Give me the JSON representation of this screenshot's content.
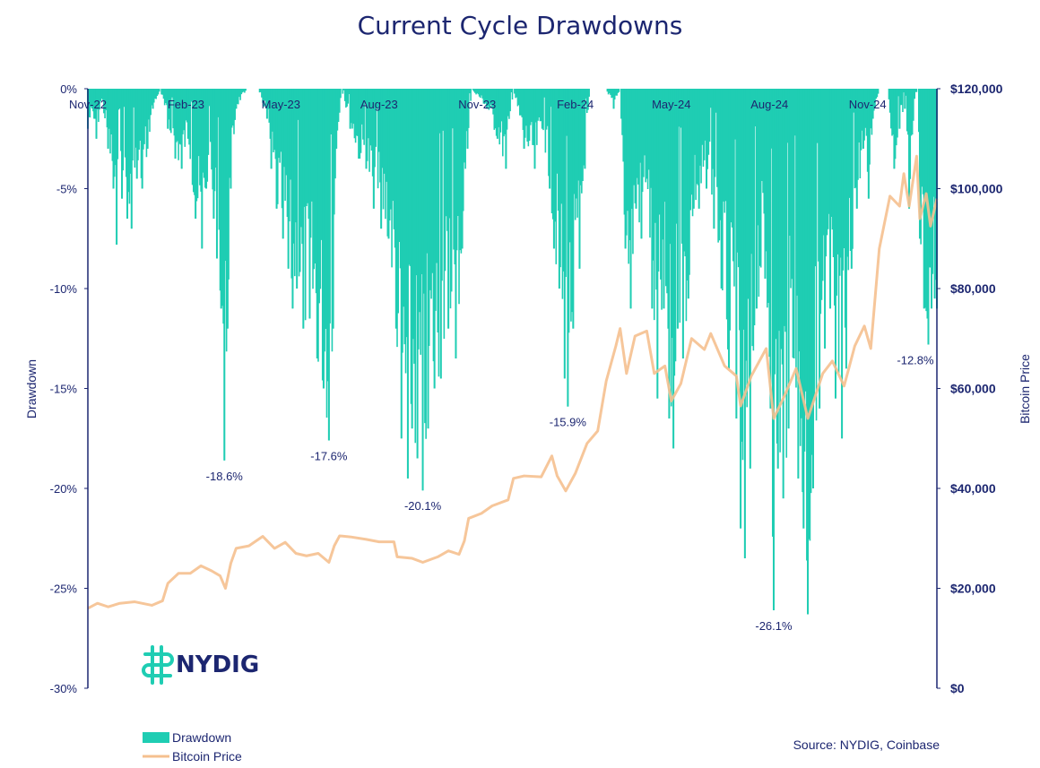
{
  "chart_data": {
    "type": "area",
    "title": "Current Cycle Drawdowns",
    "y_left_label": "Drawdown",
    "y_right_label": "Bitcoin Price",
    "y_left_ticks": [
      "0%",
      "-5%",
      "-10%",
      "-15%",
      "-20%",
      "-25%",
      "-30%"
    ],
    "y_left_range": [
      -30,
      0
    ],
    "y_right_ticks": [
      "$120,000",
      "$100,000",
      "$80,000",
      "$60,000",
      "$40,000",
      "$20,000",
      "$0"
    ],
    "y_right_range": [
      0,
      120000
    ],
    "x_range": [
      "2022-11-01",
      "2025-01-05"
    ],
    "x_ticks": [
      {
        "label": "Nov-22",
        "date": "2022-11-01"
      },
      {
        "label": "Feb-23",
        "date": "2023-02-01"
      },
      {
        "label": "May-23",
        "date": "2023-05-01"
      },
      {
        "label": "Aug-23",
        "date": "2023-08-01"
      },
      {
        "label": "Nov-23",
        "date": "2023-11-01"
      },
      {
        "label": "Feb-24",
        "date": "2024-02-01"
      },
      {
        "label": "May-24",
        "date": "2024-05-01"
      },
      {
        "label": "Aug-24",
        "date": "2024-08-01"
      },
      {
        "label": "Nov-24",
        "date": "2024-11-01"
      }
    ],
    "series": [
      {
        "name": "Drawdown",
        "color": "#1fcdb3",
        "points": [
          [
            "2022-11-01",
            -2.0
          ],
          [
            "2022-11-07",
            -1.5
          ],
          [
            "2022-11-09",
            -2.5
          ],
          [
            "2022-11-14",
            -0.5
          ],
          [
            "2022-11-20",
            -3.0
          ],
          [
            "2022-11-25",
            -5.0
          ],
          [
            "2022-11-28",
            -7.8
          ],
          [
            "2022-12-03",
            -5.5
          ],
          [
            "2022-12-08",
            -6.5
          ],
          [
            "2022-12-12",
            -7.0
          ],
          [
            "2022-12-17",
            -4.5
          ],
          [
            "2022-12-22",
            -5.0
          ],
          [
            "2022-12-27",
            -3.0
          ],
          [
            "2023-01-01",
            -1.0
          ],
          [
            "2023-01-08",
            0.0
          ],
          [
            "2023-01-15",
            -2.0
          ],
          [
            "2023-01-22",
            -3.5
          ],
          [
            "2023-01-28",
            -4.0
          ],
          [
            "2023-02-03",
            -2.5
          ],
          [
            "2023-02-10",
            -6.5
          ],
          [
            "2023-02-16",
            -8.0
          ],
          [
            "2023-02-20",
            -5.0
          ],
          [
            "2023-02-27",
            -6.5
          ],
          [
            "2023-03-02",
            -8.5
          ],
          [
            "2023-03-06",
            -11.0
          ],
          [
            "2023-03-09",
            -18.6
          ],
          [
            "2023-03-12",
            -12.0
          ],
          [
            "2023-03-15",
            -5.0
          ],
          [
            "2023-03-20",
            -1.0
          ],
          [
            "2023-03-30",
            0.0
          ],
          [
            "2023-04-10",
            0.0
          ],
          [
            "2023-04-18",
            -1.5
          ],
          [
            "2023-04-22",
            -4.0
          ],
          [
            "2023-04-27",
            -6.0
          ],
          [
            "2023-05-03",
            -7.5
          ],
          [
            "2023-05-08",
            -9.0
          ],
          [
            "2023-05-12",
            -11.0
          ],
          [
            "2023-05-16",
            -10.0
          ],
          [
            "2023-05-22",
            -12.0
          ],
          [
            "2023-05-28",
            -11.5
          ],
          [
            "2023-06-04",
            -13.5
          ],
          [
            "2023-06-10",
            -15.0
          ],
          [
            "2023-06-15",
            -17.6
          ],
          [
            "2023-06-19",
            -12.0
          ],
          [
            "2023-06-22",
            -3.0
          ],
          [
            "2023-06-27",
            0.0
          ],
          [
            "2023-07-05",
            -2.0
          ],
          [
            "2023-07-13",
            -3.5
          ],
          [
            "2023-07-20",
            -4.0
          ],
          [
            "2023-07-27",
            -6.0
          ],
          [
            "2023-08-03",
            -7.0
          ],
          [
            "2023-08-10",
            -7.5
          ],
          [
            "2023-08-17",
            -12.0
          ],
          [
            "2023-08-22",
            -17.5
          ],
          [
            "2023-08-28",
            -19.5
          ],
          [
            "2023-09-01",
            -17.0
          ],
          [
            "2023-09-06",
            -18.5
          ],
          [
            "2023-09-11",
            -20.1
          ],
          [
            "2023-09-16",
            -17.0
          ],
          [
            "2023-09-22",
            -15.0
          ],
          [
            "2023-09-28",
            -14.5
          ],
          [
            "2023-10-05",
            -12.0
          ],
          [
            "2023-10-12",
            -13.5
          ],
          [
            "2023-10-18",
            -8.0
          ],
          [
            "2023-10-23",
            -3.0
          ],
          [
            "2023-10-27",
            0.0
          ],
          [
            "2023-11-10",
            -1.0
          ],
          [
            "2023-11-20",
            -2.5
          ],
          [
            "2023-11-28",
            -4.0
          ],
          [
            "2023-12-05",
            0.0
          ],
          [
            "2023-12-15",
            -3.0
          ],
          [
            "2023-12-25",
            -4.0
          ],
          [
            "2024-01-01",
            -2.0
          ],
          [
            "2024-01-08",
            -5.0
          ],
          [
            "2024-01-12",
            -8.0
          ],
          [
            "2024-01-17",
            -10.0
          ],
          [
            "2024-01-22",
            -14.5
          ],
          [
            "2024-01-25",
            -15.9
          ],
          [
            "2024-01-30",
            -12.0
          ],
          [
            "2024-02-05",
            -9.0
          ],
          [
            "2024-02-10",
            -4.0
          ],
          [
            "2024-02-15",
            0.0
          ],
          [
            "2024-02-22",
            0.0
          ],
          [
            "2024-03-01",
            0.0
          ],
          [
            "2024-03-08",
            -1.0
          ],
          [
            "2024-03-14",
            0.0
          ],
          [
            "2024-03-19",
            -8.0
          ],
          [
            "2024-03-24",
            -11.0
          ],
          [
            "2024-03-29",
            -6.0
          ],
          [
            "2024-04-03",
            -7.5
          ],
          [
            "2024-04-08",
            -4.5
          ],
          [
            "2024-04-13",
            -11.0
          ],
          [
            "2024-04-18",
            -15.5
          ],
          [
            "2024-04-24",
            -11.0
          ],
          [
            "2024-04-29",
            -16.5
          ],
          [
            "2024-05-03",
            -18.0
          ],
          [
            "2024-05-07",
            -12.0
          ],
          [
            "2024-05-12",
            -13.5
          ],
          [
            "2024-05-17",
            -10.5
          ],
          [
            "2024-05-22",
            -6.0
          ],
          [
            "2024-05-27",
            -6.0
          ],
          [
            "2024-06-03",
            -5.0
          ],
          [
            "2024-06-10",
            -7.0
          ],
          [
            "2024-06-17",
            -10.0
          ],
          [
            "2024-06-24",
            -14.0
          ],
          [
            "2024-07-01",
            -16.5
          ],
          [
            "2024-07-05",
            -22.0
          ],
          [
            "2024-07-09",
            -23.5
          ],
          [
            "2024-07-14",
            -19.0
          ],
          [
            "2024-07-20",
            -11.0
          ],
          [
            "2024-07-28",
            -9.5
          ],
          [
            "2024-08-02",
            -16.0
          ],
          [
            "2024-08-05",
            -26.1
          ],
          [
            "2024-08-09",
            -19.0
          ],
          [
            "2024-08-14",
            -20.5
          ],
          [
            "2024-08-19",
            -17.0
          ],
          [
            "2024-08-24",
            -13.5
          ],
          [
            "2024-08-28",
            -19.5
          ],
          [
            "2024-09-02",
            -22.0
          ],
          [
            "2024-09-06",
            -26.3
          ],
          [
            "2024-09-11",
            -20.0
          ],
          [
            "2024-09-17",
            -16.0
          ],
          [
            "2024-09-22",
            -13.0
          ],
          [
            "2024-09-27",
            -11.0
          ],
          [
            "2024-10-02",
            -15.5
          ],
          [
            "2024-10-08",
            -17.5
          ],
          [
            "2024-10-12",
            -14.0
          ],
          [
            "2024-10-17",
            -9.0
          ],
          [
            "2024-10-22",
            -6.0
          ],
          [
            "2024-10-28",
            -3.0
          ],
          [
            "2024-11-02",
            -5.5
          ],
          [
            "2024-11-06",
            -1.5
          ],
          [
            "2024-11-12",
            0.0
          ],
          [
            "2024-11-20",
            0.0
          ],
          [
            "2024-11-26",
            -4.0
          ],
          [
            "2024-12-01",
            -2.0
          ],
          [
            "2024-12-06",
            -1.0
          ],
          [
            "2024-12-10",
            -6.0
          ],
          [
            "2024-12-15",
            -0.5
          ],
          [
            "2024-12-18",
            0.0
          ],
          [
            "2024-12-20",
            -7.5
          ],
          [
            "2024-12-24",
            -11.0
          ],
          [
            "2024-12-28",
            -12.8
          ],
          [
            "2024-12-31",
            -11.0
          ],
          [
            "2025-01-03",
            -10.5
          ],
          [
            "2025-01-05",
            -11.0
          ]
        ]
      },
      {
        "name": "Bitcoin Price",
        "color": "#f5c08f",
        "points": [
          [
            "2022-11-01",
            16000
          ],
          [
            "2022-11-10",
            17000
          ],
          [
            "2022-11-20",
            16300
          ],
          [
            "2022-12-01",
            17000
          ],
          [
            "2022-12-15",
            17300
          ],
          [
            "2022-12-31",
            16600
          ],
          [
            "2023-01-10",
            17500
          ],
          [
            "2023-01-15",
            21000
          ],
          [
            "2023-01-25",
            23000
          ],
          [
            "2023-02-05",
            23000
          ],
          [
            "2023-02-15",
            24500
          ],
          [
            "2023-02-25",
            23500
          ],
          [
            "2023-03-05",
            22500
          ],
          [
            "2023-03-10",
            20000
          ],
          [
            "2023-03-15",
            25000
          ],
          [
            "2023-03-20",
            28000
          ],
          [
            "2023-04-01",
            28500
          ],
          [
            "2023-04-14",
            30400
          ],
          [
            "2023-04-25",
            28000
          ],
          [
            "2023-05-05",
            29200
          ],
          [
            "2023-05-15",
            27000
          ],
          [
            "2023-05-25",
            26500
          ],
          [
            "2023-06-05",
            27000
          ],
          [
            "2023-06-15",
            25200
          ],
          [
            "2023-06-20",
            28500
          ],
          [
            "2023-06-25",
            30500
          ],
          [
            "2023-07-05",
            30300
          ],
          [
            "2023-07-20",
            29800
          ],
          [
            "2023-08-01",
            29300
          ],
          [
            "2023-08-15",
            29300
          ],
          [
            "2023-08-18",
            26300
          ],
          [
            "2023-09-01",
            26000
          ],
          [
            "2023-09-11",
            25200
          ],
          [
            "2023-09-25",
            26300
          ],
          [
            "2023-10-05",
            27500
          ],
          [
            "2023-10-15",
            26800
          ],
          [
            "2023-10-20",
            29500
          ],
          [
            "2023-10-24",
            34000
          ],
          [
            "2023-11-05",
            35000
          ],
          [
            "2023-11-15",
            36500
          ],
          [
            "2023-11-30",
            37700
          ],
          [
            "2023-12-05",
            42000
          ],
          [
            "2023-12-15",
            42500
          ],
          [
            "2023-12-31",
            42300
          ],
          [
            "2024-01-10",
            46500
          ],
          [
            "2024-01-15",
            42500
          ],
          [
            "2024-01-23",
            39500
          ],
          [
            "2024-02-01",
            43000
          ],
          [
            "2024-02-12",
            49000
          ],
          [
            "2024-02-22",
            51500
          ],
          [
            "2024-03-01",
            61500
          ],
          [
            "2024-03-10",
            68500
          ],
          [
            "2024-03-14",
            72000
          ],
          [
            "2024-03-20",
            63000
          ],
          [
            "2024-03-28",
            70500
          ],
          [
            "2024-04-08",
            71500
          ],
          [
            "2024-04-15",
            63000
          ],
          [
            "2024-04-25",
            64500
          ],
          [
            "2024-05-01",
            57500
          ],
          [
            "2024-05-10",
            61000
          ],
          [
            "2024-05-20",
            70000
          ],
          [
            "2024-06-01",
            67800
          ],
          [
            "2024-06-07",
            71000
          ],
          [
            "2024-06-20",
            64500
          ],
          [
            "2024-07-01",
            62500
          ],
          [
            "2024-07-05",
            56500
          ],
          [
            "2024-07-15",
            62500
          ],
          [
            "2024-07-29",
            68000
          ],
          [
            "2024-08-05",
            54000
          ],
          [
            "2024-08-15",
            58500
          ],
          [
            "2024-08-26",
            64000
          ],
          [
            "2024-09-06",
            54000
          ],
          [
            "2024-09-20",
            63000
          ],
          [
            "2024-09-29",
            65500
          ],
          [
            "2024-10-10",
            60500
          ],
          [
            "2024-10-20",
            68500
          ],
          [
            "2024-10-29",
            72500
          ],
          [
            "2024-11-04",
            68000
          ],
          [
            "2024-11-12",
            88000
          ],
          [
            "2024-11-22",
            98500
          ],
          [
            "2024-12-01",
            96500
          ],
          [
            "2024-12-05",
            103000
          ],
          [
            "2024-12-10",
            96500
          ],
          [
            "2024-12-17",
            106500
          ],
          [
            "2024-12-20",
            94000
          ],
          [
            "2024-12-26",
            99000
          ],
          [
            "2024-12-30",
            92500
          ],
          [
            "2025-01-05",
            98000
          ]
        ]
      }
    ],
    "annotations": [
      {
        "text": "-18.6%",
        "date": "2023-03-09",
        "value": -18.6
      },
      {
        "text": "-17.6%",
        "date": "2023-06-15",
        "value": -17.6
      },
      {
        "text": "-20.1%",
        "date": "2023-09-11",
        "value": -20.1
      },
      {
        "text": "-15.9%",
        "date": "2024-01-25",
        "value": -15.9
      },
      {
        "text": "-26.1%",
        "date": "2024-08-05",
        "value": -26.1
      },
      {
        "text": "-12.8%",
        "date": "2024-12-28",
        "value": -12.8
      }
    ],
    "legend": {
      "position": "bottom-left",
      "entries": [
        "Drawdown",
        "Bitcoin Price"
      ]
    },
    "grid": false
  },
  "brand": {
    "name": "NYDIG"
  },
  "source": "Source: NYDIG, Coinbase"
}
